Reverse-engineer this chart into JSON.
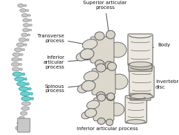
{
  "background_color": "#ffffff",
  "fig_width": 2.59,
  "fig_height": 1.95,
  "dpi": 100,
  "labels": {
    "superior_articular_process": "Superior articular\nprocess",
    "transverse_process": "Transverse\nprocess",
    "inferior_articular_process_left": "Inferior\narticular\nprocess",
    "body": "Body",
    "spinous_process": "Spinous\nprocess",
    "invertebral_disc": "Invertebral\ndisc",
    "inferior_articular_process_bottom": "Inferior articular process"
  },
  "text_color": "#111111",
  "fontsize": 5.2,
  "spine_teal": "#6dcfcf",
  "spine_gray": "#c8c8c8",
  "bone_fill": "#e8e4dc",
  "bone_edge": "#666666",
  "line_color": "#444444"
}
